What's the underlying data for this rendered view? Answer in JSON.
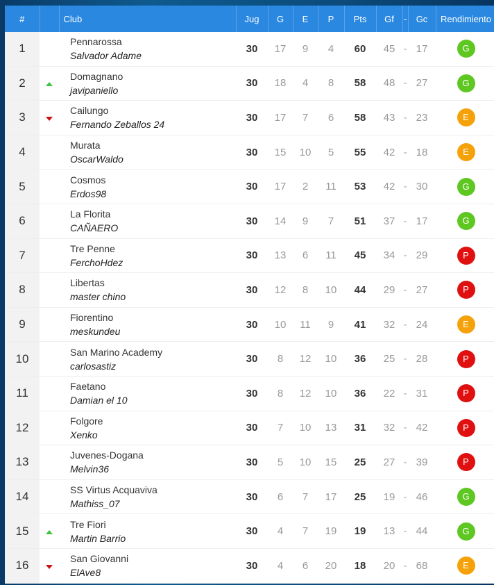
{
  "headers": {
    "rank": "#",
    "club": "Club",
    "jug": "Jug",
    "g": "G",
    "e": "E",
    "p": "P",
    "pts": "Pts",
    "gf": "Gf",
    "sep": "-",
    "gc": "Gc",
    "rend": "Rendimiento"
  },
  "colors": {
    "G": "#5ec722",
    "E": "#f5a20a",
    "P": "#e01010"
  },
  "rows": [
    {
      "rank": "1",
      "move": "",
      "club": "Pennarossa",
      "manager": "Salvador Adame",
      "jug": "30",
      "g": "17",
      "e": "9",
      "p": "4",
      "pts": "60",
      "gf": "45",
      "sep": "-",
      "gc": "17",
      "rend": "G"
    },
    {
      "rank": "2",
      "move": "up",
      "club": "Domagnano",
      "manager": "javipaniello",
      "jug": "30",
      "g": "18",
      "e": "4",
      "p": "8",
      "pts": "58",
      "gf": "48",
      "sep": "-",
      "gc": "27",
      "rend": "G"
    },
    {
      "rank": "3",
      "move": "down",
      "club": "Cailungo",
      "manager": "Fernando Zeballos 24",
      "jug": "30",
      "g": "17",
      "e": "7",
      "p": "6",
      "pts": "58",
      "gf": "43",
      "sep": "-",
      "gc": "23",
      "rend": "E"
    },
    {
      "rank": "4",
      "move": "",
      "club": "Murata",
      "manager": "OscarWaldo",
      "jug": "30",
      "g": "15",
      "e": "10",
      "p": "5",
      "pts": "55",
      "gf": "42",
      "sep": "-",
      "gc": "18",
      "rend": "E"
    },
    {
      "rank": "5",
      "move": "",
      "club": "Cosmos",
      "manager": "Erdos98",
      "jug": "30",
      "g": "17",
      "e": "2",
      "p": "11",
      "pts": "53",
      "gf": "42",
      "sep": "-",
      "gc": "30",
      "rend": "G"
    },
    {
      "rank": "6",
      "move": "",
      "club": "La Florita",
      "manager": "CAÑAERO",
      "jug": "30",
      "g": "14",
      "e": "9",
      "p": "7",
      "pts": "51",
      "gf": "37",
      "sep": "-",
      "gc": "17",
      "rend": "G"
    },
    {
      "rank": "7",
      "move": "",
      "club": "Tre Penne",
      "manager": "FerchoHdez",
      "jug": "30",
      "g": "13",
      "e": "6",
      "p": "11",
      "pts": "45",
      "gf": "34",
      "sep": "-",
      "gc": "29",
      "rend": "P"
    },
    {
      "rank": "8",
      "move": "",
      "club": "Libertas",
      "manager": "master chino",
      "jug": "30",
      "g": "12",
      "e": "8",
      "p": "10",
      "pts": "44",
      "gf": "29",
      "sep": "-",
      "gc": "27",
      "rend": "P"
    },
    {
      "rank": "9",
      "move": "",
      "club": "Fiorentino",
      "manager": "meskundeu",
      "jug": "30",
      "g": "10",
      "e": "11",
      "p": "9",
      "pts": "41",
      "gf": "32",
      "sep": "-",
      "gc": "24",
      "rend": "E"
    },
    {
      "rank": "10",
      "move": "",
      "club": "San Marino Academy",
      "manager": "carlosastiz",
      "jug": "30",
      "g": "8",
      "e": "12",
      "p": "10",
      "pts": "36",
      "gf": "25",
      "sep": "-",
      "gc": "28",
      "rend": "P"
    },
    {
      "rank": "11",
      "move": "",
      "club": "Faetano",
      "manager": "Damian el 10",
      "jug": "30",
      "g": "8",
      "e": "12",
      "p": "10",
      "pts": "36",
      "gf": "22",
      "sep": "-",
      "gc": "31",
      "rend": "P"
    },
    {
      "rank": "12",
      "move": "",
      "club": "Folgore",
      "manager": "Xenko",
      "jug": "30",
      "g": "7",
      "e": "10",
      "p": "13",
      "pts": "31",
      "gf": "32",
      "sep": "-",
      "gc": "42",
      "rend": "P"
    },
    {
      "rank": "13",
      "move": "",
      "club": "Juvenes-Dogana",
      "manager": "Melvin36",
      "jug": "30",
      "g": "5",
      "e": "10",
      "p": "15",
      "pts": "25",
      "gf": "27",
      "sep": "-",
      "gc": "39",
      "rend": "P"
    },
    {
      "rank": "14",
      "move": "",
      "club": "SS Virtus Acquaviva",
      "manager": "Mathiss_07",
      "jug": "30",
      "g": "6",
      "e": "7",
      "p": "17",
      "pts": "25",
      "gf": "19",
      "sep": "-",
      "gc": "46",
      "rend": "G"
    },
    {
      "rank": "15",
      "move": "up",
      "club": "Tre Fiori",
      "manager": "Martin Barrio",
      "jug": "30",
      "g": "4",
      "e": "7",
      "p": "19",
      "pts": "19",
      "gf": "13",
      "sep": "-",
      "gc": "44",
      "rend": "G"
    },
    {
      "rank": "16",
      "move": "down",
      "club": "San Giovanni",
      "manager": "ElAve8",
      "jug": "30",
      "g": "4",
      "e": "6",
      "p": "20",
      "pts": "18",
      "gf": "20",
      "sep": "-",
      "gc": "68",
      "rend": "E"
    }
  ]
}
